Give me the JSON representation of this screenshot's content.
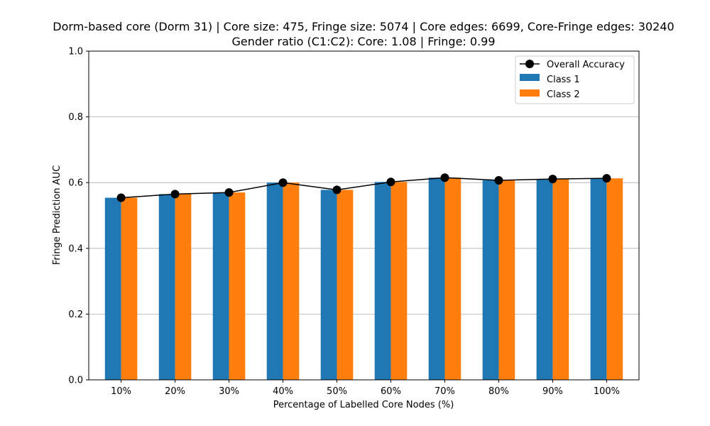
{
  "chart_data": {
    "type": "bar",
    "title_line1": "Dorm-based core (Dorm 31) | Core size: 475, Fringe size: 5074 | Core edges: 6699, Core-Fringe edges: 30240",
    "title_line2": "Gender ratio (C1:C2): Core: 1.08 | Fringe: 0.99",
    "xlabel": "Percentage of Labelled Core Nodes (%)",
    "ylabel": "Fringe Prediction AUC",
    "categories": [
      "10%",
      "20%",
      "30%",
      "40%",
      "50%",
      "60%",
      "70%",
      "80%",
      "90%",
      "100%"
    ],
    "ylim": [
      0,
      1.0
    ],
    "yticks": [
      0.0,
      0.2,
      0.4,
      0.6,
      0.8,
      1.0
    ],
    "ytick_labels": [
      "0.0",
      "0.2",
      "0.4",
      "0.6",
      "0.8",
      "1.0"
    ],
    "grid": "horizontal",
    "legend_position": "top-right",
    "series": [
      {
        "name": "Class 1",
        "kind": "bar",
        "color": "#1f77b4",
        "values": [
          0.554,
          0.565,
          0.57,
          0.6,
          0.578,
          0.602,
          0.615,
          0.607,
          0.611,
          0.613
        ]
      },
      {
        "name": "Class 2",
        "kind": "bar",
        "color": "#ff7f0e",
        "values": [
          0.554,
          0.565,
          0.57,
          0.6,
          0.578,
          0.602,
          0.615,
          0.607,
          0.611,
          0.613
        ]
      },
      {
        "name": "Overall Accuracy",
        "kind": "line",
        "color": "#000000",
        "values": [
          0.554,
          0.565,
          0.57,
          0.6,
          0.578,
          0.602,
          0.615,
          0.607,
          0.611,
          0.613
        ]
      }
    ]
  }
}
